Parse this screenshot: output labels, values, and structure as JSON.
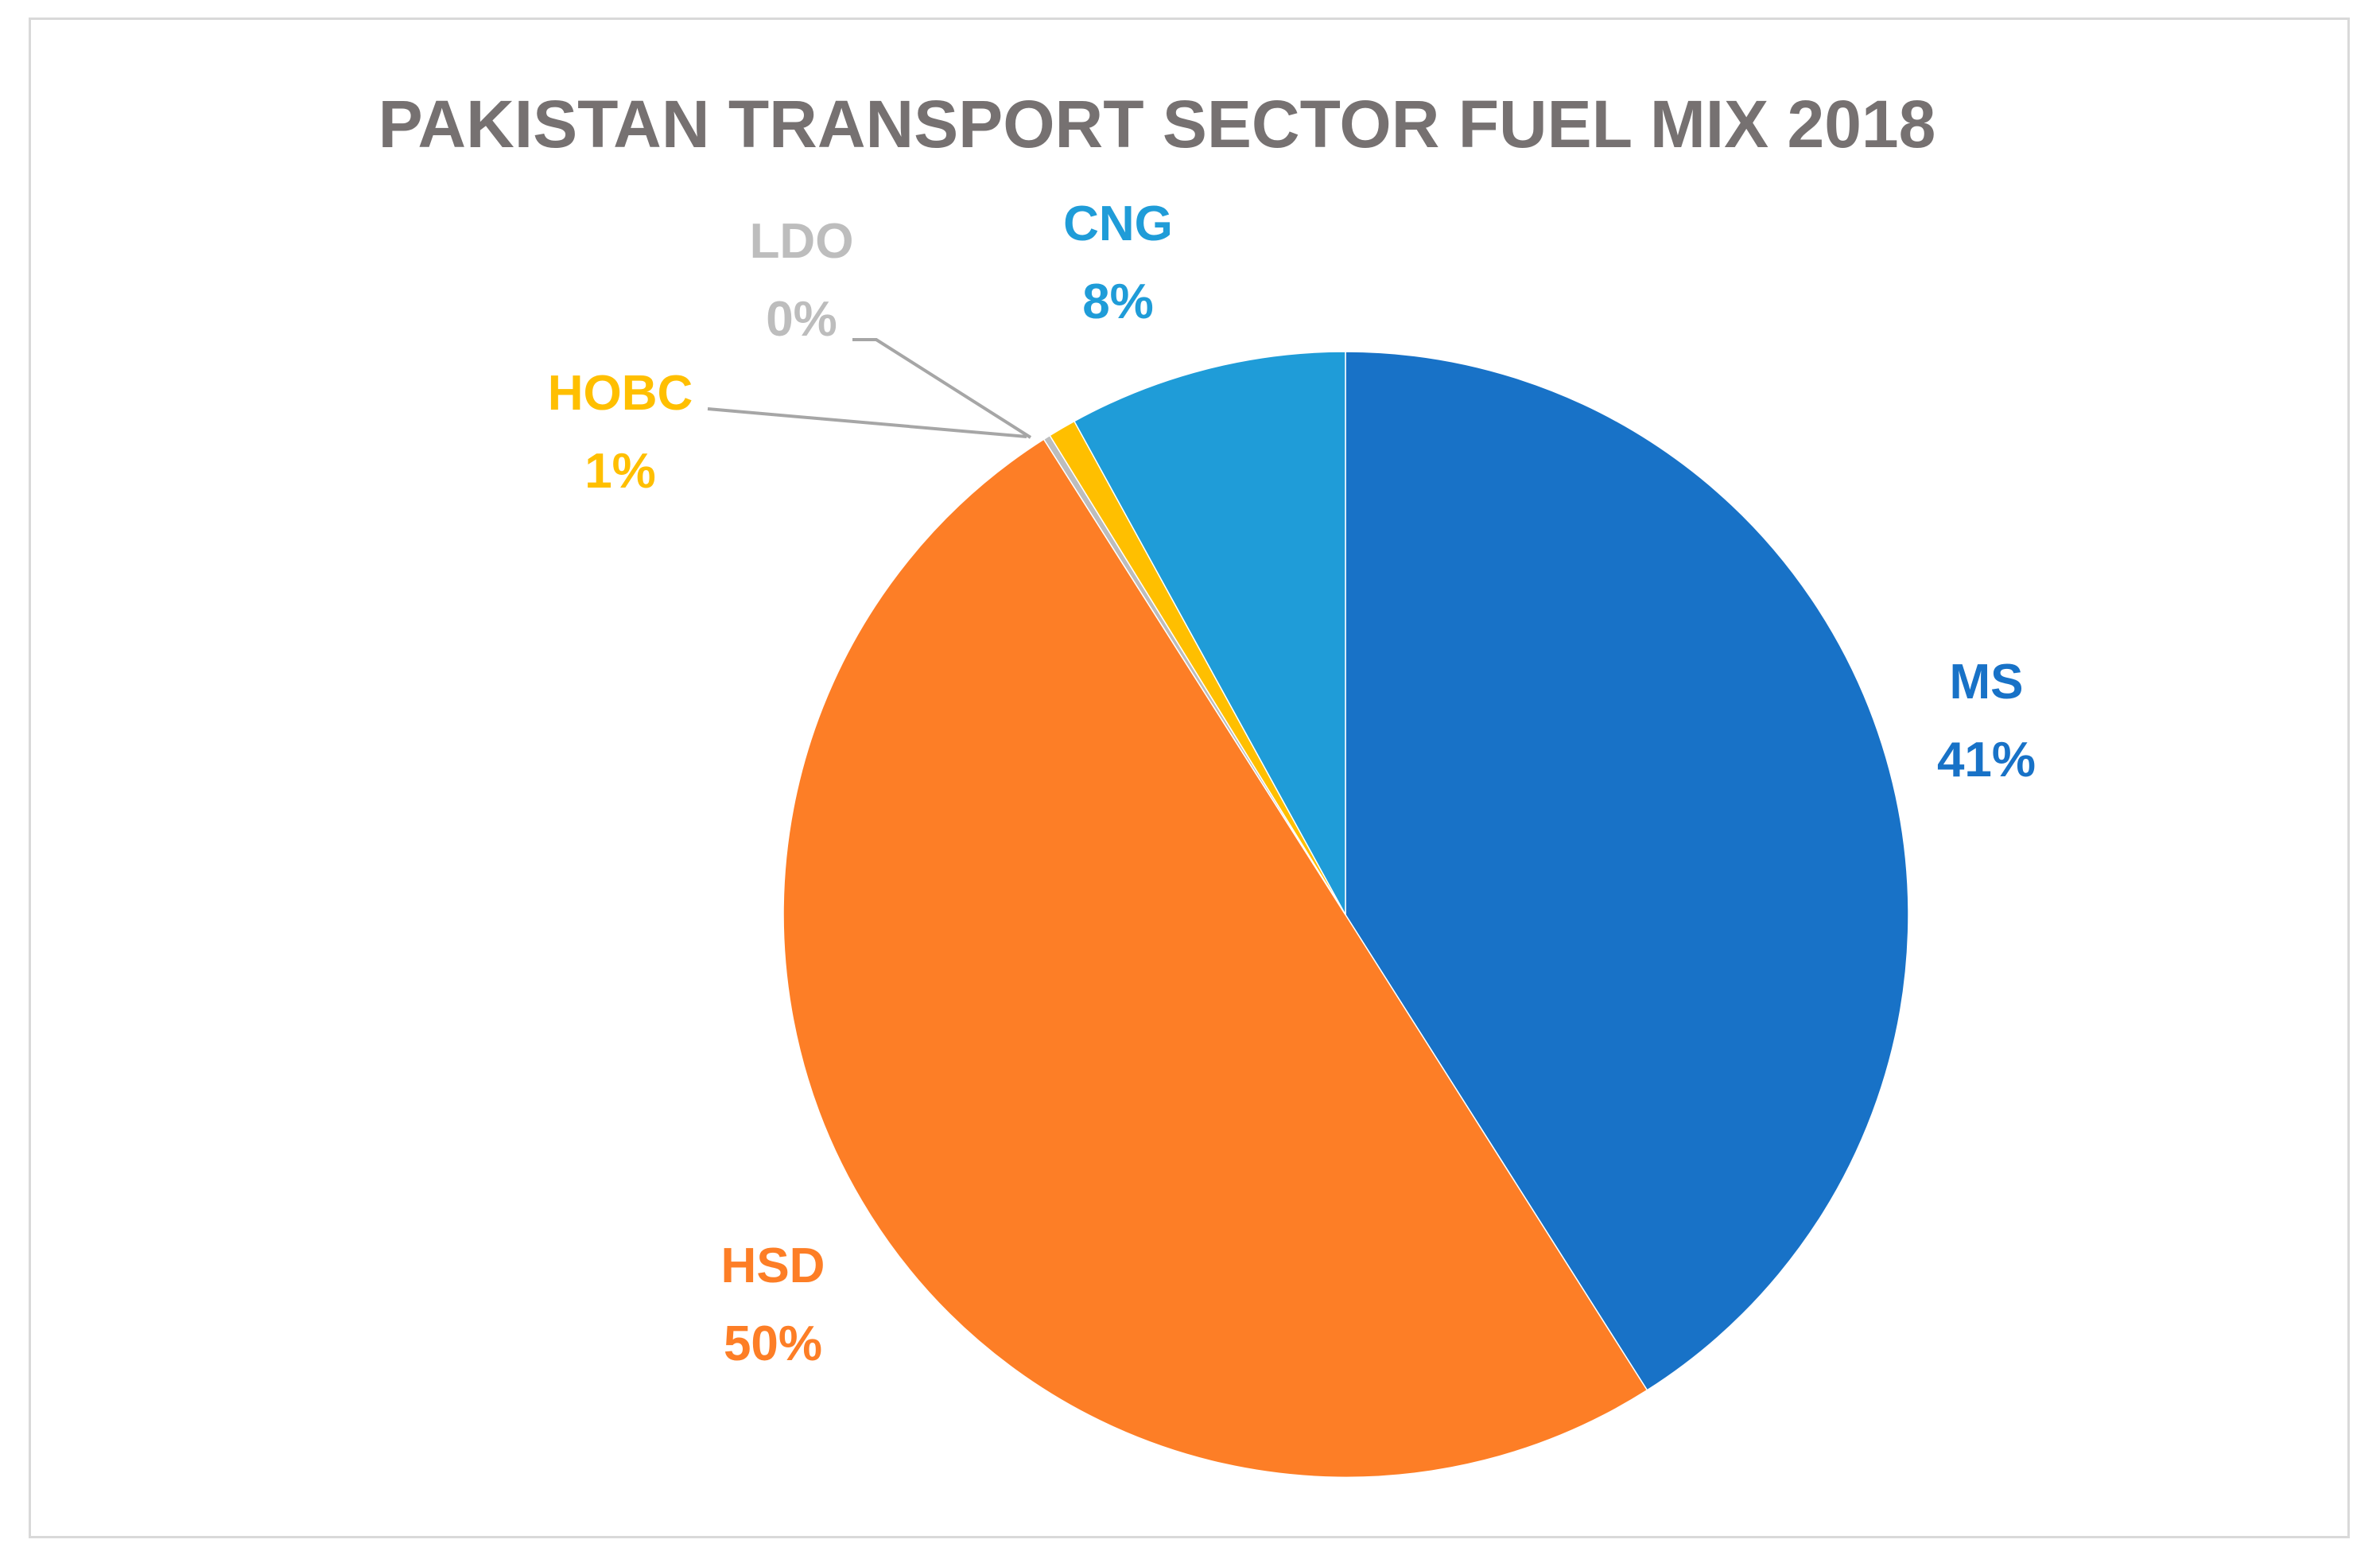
{
  "chart_data": {
    "type": "pie",
    "title": "PAKISTAN TRANSPORT SECTOR FUEL MIX 2018",
    "start_angle_deg": 0,
    "direction": "clockwise",
    "slices": [
      {
        "name": "MS",
        "value": 41.0,
        "label": "41%",
        "color": "#1872C7",
        "key": "ms"
      },
      {
        "name": "HSD",
        "value": 50.0,
        "label": "50%",
        "color": "#FD7E26",
        "key": "hsd"
      },
      {
        "name": "LDO",
        "value": 0.2,
        "label": "0%",
        "color": "#BDBDBD",
        "key": "ldo"
      },
      {
        "name": "HOBC",
        "value": 0.8,
        "label": "1%",
        "color": "#FFBF00",
        "key": "hobc"
      },
      {
        "name": "CNG",
        "value": 8.0,
        "label": "8%",
        "color": "#1F9CD8",
        "key": "cng"
      }
    ],
    "leader_line_color": "#a6a6a6"
  }
}
